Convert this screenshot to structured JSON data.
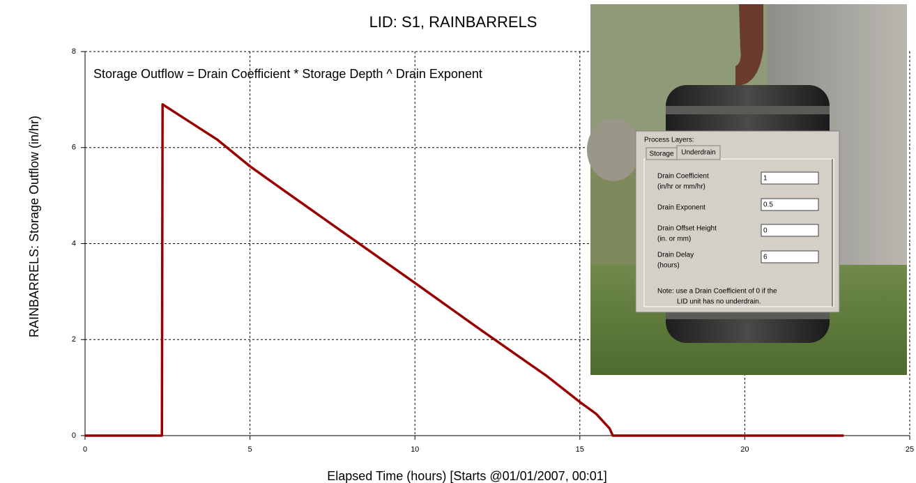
{
  "chart_data": {
    "type": "line",
    "title": "LID: S1, RAINBARRELS",
    "annotation": "Storage Outflow = Drain Coefficient * Storage Depth ^ Drain Exponent",
    "xlabel": "Elapsed Time (hours) [Starts @01/01/2007, 00:01]",
    "ylabel": "RAINBARRELS: Storage Outflow (in/hr)",
    "x": [
      0,
      2.33,
      2.35,
      4,
      5,
      6,
      8,
      10,
      12,
      14,
      15,
      15.5,
      15.9,
      16,
      23
    ],
    "series": [
      {
        "name": "Storage Outflow",
        "color": "#990000",
        "values": [
          0,
          0,
          6.9,
          6.17,
          5.61,
          5.12,
          4.15,
          3.18,
          2.2,
          1.24,
          0.7,
          0.45,
          0.15,
          0,
          0
        ]
      }
    ],
    "xlim": [
      0,
      25
    ],
    "xticks": [
      0,
      5,
      10,
      15,
      20,
      25
    ],
    "ylim": [
      0,
      8
    ],
    "yticks": [
      0,
      2,
      4,
      6,
      8
    ],
    "grid": true
  },
  "dialog": {
    "title": "Process Layers:",
    "tabs": [
      "Storage",
      "Underdrain"
    ],
    "fields": [
      {
        "lines": [
          "Drain Coefficient",
          "(in/hr or mm/hr)"
        ],
        "value": "1"
      },
      {
        "lines": [
          "Drain Exponent"
        ],
        "value": "0.5"
      },
      {
        "lines": [
          "Drain Offset Height",
          "(in. or mm)"
        ],
        "value": "0"
      },
      {
        "lines": [
          "Drain Delay",
          "(hours)"
        ],
        "value": "6"
      }
    ],
    "note": [
      "Note: use a Drain Coefficient of 0 if the",
      "LID unit has no underdrain."
    ]
  }
}
